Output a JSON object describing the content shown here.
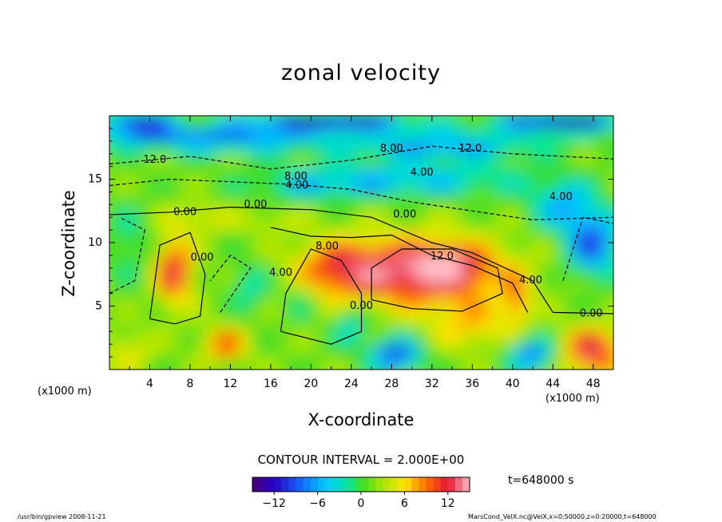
{
  "chart_data": {
    "type": "heatmap",
    "title": "zonal velocity",
    "xlabel": "X-coordinate",
    "ylabel": "Z-coordinate",
    "x_unit_left": "(x1000 m)",
    "x_unit_right": "(x1000 m)",
    "xlim": [
      0,
      50
    ],
    "ylim": [
      0,
      20
    ],
    "x_ticks": [
      "4",
      "8",
      "12",
      "16",
      "20",
      "24",
      "28",
      "32",
      "36",
      "40",
      "44",
      "48"
    ],
    "y_ticks": [
      "5",
      "10",
      "15"
    ],
    "contour_interval": "CONTOUR INTERVAL = 2.000E+00",
    "colorbar_ticks": [
      "−12",
      "−6",
      "0",
      "6",
      "12"
    ],
    "colorbar_range": [
      -15,
      15
    ],
    "time_label": "t=648000 s",
    "contour_labels": [
      {
        "text": "12.0",
        "x": 4.5,
        "y": 16.5
      },
      {
        "text": "8.00",
        "x": 18.5,
        "y": 15.2
      },
      {
        "text": "4.00",
        "x": 18.6,
        "y": 14.5
      },
      {
        "text": "8.00",
        "x": 28.0,
        "y": 17.4
      },
      {
        "text": "12.0",
        "x": 35.8,
        "y": 17.4
      },
      {
        "text": "4.00",
        "x": 31.0,
        "y": 15.5
      },
      {
        "text": "4.00",
        "x": 44.8,
        "y": 13.6
      },
      {
        "text": "0.00",
        "x": 7.5,
        "y": 12.4
      },
      {
        "text": "0.00",
        "x": 14.5,
        "y": 13.0
      },
      {
        "text": "0.00",
        "x": 29.3,
        "y": 12.2
      },
      {
        "text": "0.00",
        "x": 47.8,
        "y": 4.4
      },
      {
        "text": "8.00",
        "x": 21.6,
        "y": 9.7
      },
      {
        "text": "12.0",
        "x": 33.0,
        "y": 8.9
      },
      {
        "text": "4.00",
        "x": 17.0,
        "y": 7.6
      },
      {
        "text": "4.00",
        "x": 41.8,
        "y": 7.0
      },
      {
        "text": "0.00",
        "x": 9.2,
        "y": 8.8
      },
      {
        "text": "0.00",
        "x": 25.0,
        "y": 5.0
      }
    ]
  },
  "footer_left": "/usr/bin/gpview  2008-11-21",
  "footer_right": "MarsCond_VelX.nc@VelX,x=0:50000,z=0:20000,t=648000",
  "colors": {
    "strong_negative": "#5a00a8",
    "negative": "#1e7cff",
    "zero": "#33dd22",
    "positive": "#ff5a00",
    "strong_positive": "#ffffff"
  }
}
